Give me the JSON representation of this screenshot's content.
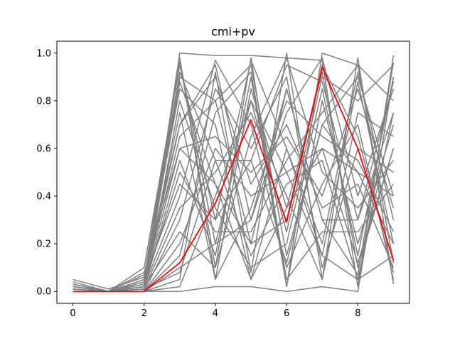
{
  "chart_data": {
    "type": "line",
    "title": "cmi+pv",
    "xlabel": "",
    "ylabel": "",
    "xlim": [
      -0.45,
      9.45
    ],
    "ylim": [
      -0.05,
      1.05
    ],
    "x_ticks": [
      "0",
      "2",
      "4",
      "6",
      "8"
    ],
    "y_ticks": [
      "0.0",
      "0.2",
      "0.4",
      "0.6",
      "0.8",
      "1.0"
    ],
    "grid": false,
    "legend": "none",
    "x": [
      0,
      1,
      2,
      3,
      4,
      5,
      6,
      7,
      8,
      9
    ],
    "highlight_series": {
      "color": "#ff0000",
      "values": [
        0.0,
        0.0,
        0.0,
        0.12,
        0.37,
        0.72,
        0.29,
        0.94,
        0.6,
        0.13
      ]
    },
    "background_series": {
      "color": "#808080",
      "values": [
        [
          0.02,
          0.0,
          0.01,
          1.0,
          0.99,
          0.99,
          0.98,
          0.97,
          0.02,
          0.99
        ],
        [
          0.05,
          0.01,
          0.06,
          0.97,
          0.1,
          0.98,
          0.02,
          1.0,
          0.95,
          0.12
        ],
        [
          0.0,
          0.0,
          0.0,
          0.05,
          0.92,
          0.08,
          1.0,
          0.05,
          0.98,
          0.03
        ],
        [
          0.01,
          0.0,
          0.02,
          0.88,
          0.45,
          0.2,
          0.85,
          0.3,
          0.07,
          0.96
        ],
        [
          0.0,
          0.0,
          0.0,
          0.0,
          0.02,
          0.02,
          0.0,
          0.02,
          0.0,
          0.9
        ],
        [
          0.02,
          0.0,
          0.03,
          0.65,
          0.8,
          0.95,
          0.15,
          0.7,
          0.5,
          0.4
        ],
        [
          0.03,
          0.0,
          0.1,
          0.95,
          0.3,
          0.55,
          0.95,
          0.88,
          0.3,
          0.75
        ],
        [
          0.0,
          0.0,
          0.0,
          0.2,
          0.6,
          0.4,
          0.5,
          0.15,
          0.88,
          0.2
        ],
        [
          0.01,
          0.0,
          0.04,
          0.75,
          0.05,
          0.85,
          0.35,
          0.6,
          0.12,
          0.6
        ],
        [
          0.0,
          0.0,
          0.02,
          0.4,
          0.97,
          0.7,
          0.1,
          0.45,
          0.7,
          0.05
        ],
        [
          0.02,
          0.0,
          0.0,
          0.1,
          0.2,
          0.3,
          0.75,
          0.98,
          0.4,
          0.85
        ],
        [
          0.04,
          0.0,
          0.05,
          0.85,
          0.7,
          0.05,
          0.6,
          0.2,
          0.92,
          0.3
        ],
        [
          0.0,
          0.0,
          0.01,
          0.55,
          0.15,
          0.9,
          0.02,
          0.8,
          0.2,
          0.7
        ],
        [
          0.01,
          0.0,
          0.0,
          0.3,
          0.85,
          0.6,
          0.9,
          0.1,
          0.6,
          0.5
        ],
        [
          0.0,
          0.0,
          0.03,
          0.92,
          0.55,
          0.15,
          0.45,
          0.55,
          0.05,
          0.15
        ],
        [
          0.03,
          0.0,
          0.0,
          0.02,
          0.4,
          0.8,
          0.25,
          0.9,
          0.8,
          0.95
        ],
        [
          0.0,
          0.0,
          0.07,
          0.7,
          0.9,
          0.45,
          0.7,
          0.35,
          0.45,
          0.1
        ],
        [
          0.02,
          0.0,
          0.02,
          0.5,
          0.25,
          0.25,
          0.55,
          0.75,
          0.95,
          0.8
        ],
        [
          0.01,
          0.0,
          0.0,
          0.15,
          0.75,
          0.92,
          0.05,
          0.25,
          0.25,
          0.45
        ],
        [
          0.0,
          0.0,
          0.04,
          0.98,
          0.05,
          0.35,
          0.8,
          0.65,
          0.55,
          0.25
        ],
        [
          0.02,
          0.0,
          0.01,
          0.35,
          0.5,
          0.75,
          0.4,
          0.05,
          0.75,
          0.65
        ],
        [
          0.0,
          0.0,
          0.0,
          0.8,
          0.35,
          0.1,
          0.2,
          0.85,
          0.15,
          0.9
        ],
        [
          0.03,
          0.0,
          0.08,
          0.6,
          0.65,
          0.5,
          0.65,
          0.4,
          0.85,
          0.35
        ],
        [
          0.0,
          0.0,
          0.02,
          0.25,
          0.1,
          0.65,
          0.98,
          0.5,
          0.35,
          0.55
        ],
        [
          0.01,
          0.0,
          0.0,
          0.9,
          0.8,
          0.2,
          0.3,
          0.95,
          0.65,
          0.08
        ],
        [
          0.02,
          0.0,
          0.05,
          0.45,
          0.3,
          0.97,
          0.6,
          0.15,
          0.05,
          0.75
        ],
        [
          0.0,
          0.0,
          0.01,
          0.08,
          0.55,
          0.55,
          0.12,
          0.7,
          0.9,
          0.4
        ],
        [
          0.01,
          0.0,
          0.03,
          0.7,
          0.95,
          0.3,
          0.85,
          0.3,
          0.3,
          0.88
        ],
        [
          0.0,
          0.0,
          0.0,
          0.97,
          0.2,
          0.8,
          0.5,
          0.6,
          0.5,
          0.2
        ],
        [
          0.02,
          0.0,
          0.02,
          0.6,
          0.45,
          0.05,
          0.35,
          0.92,
          0.1,
          0.6
        ]
      ]
    }
  }
}
